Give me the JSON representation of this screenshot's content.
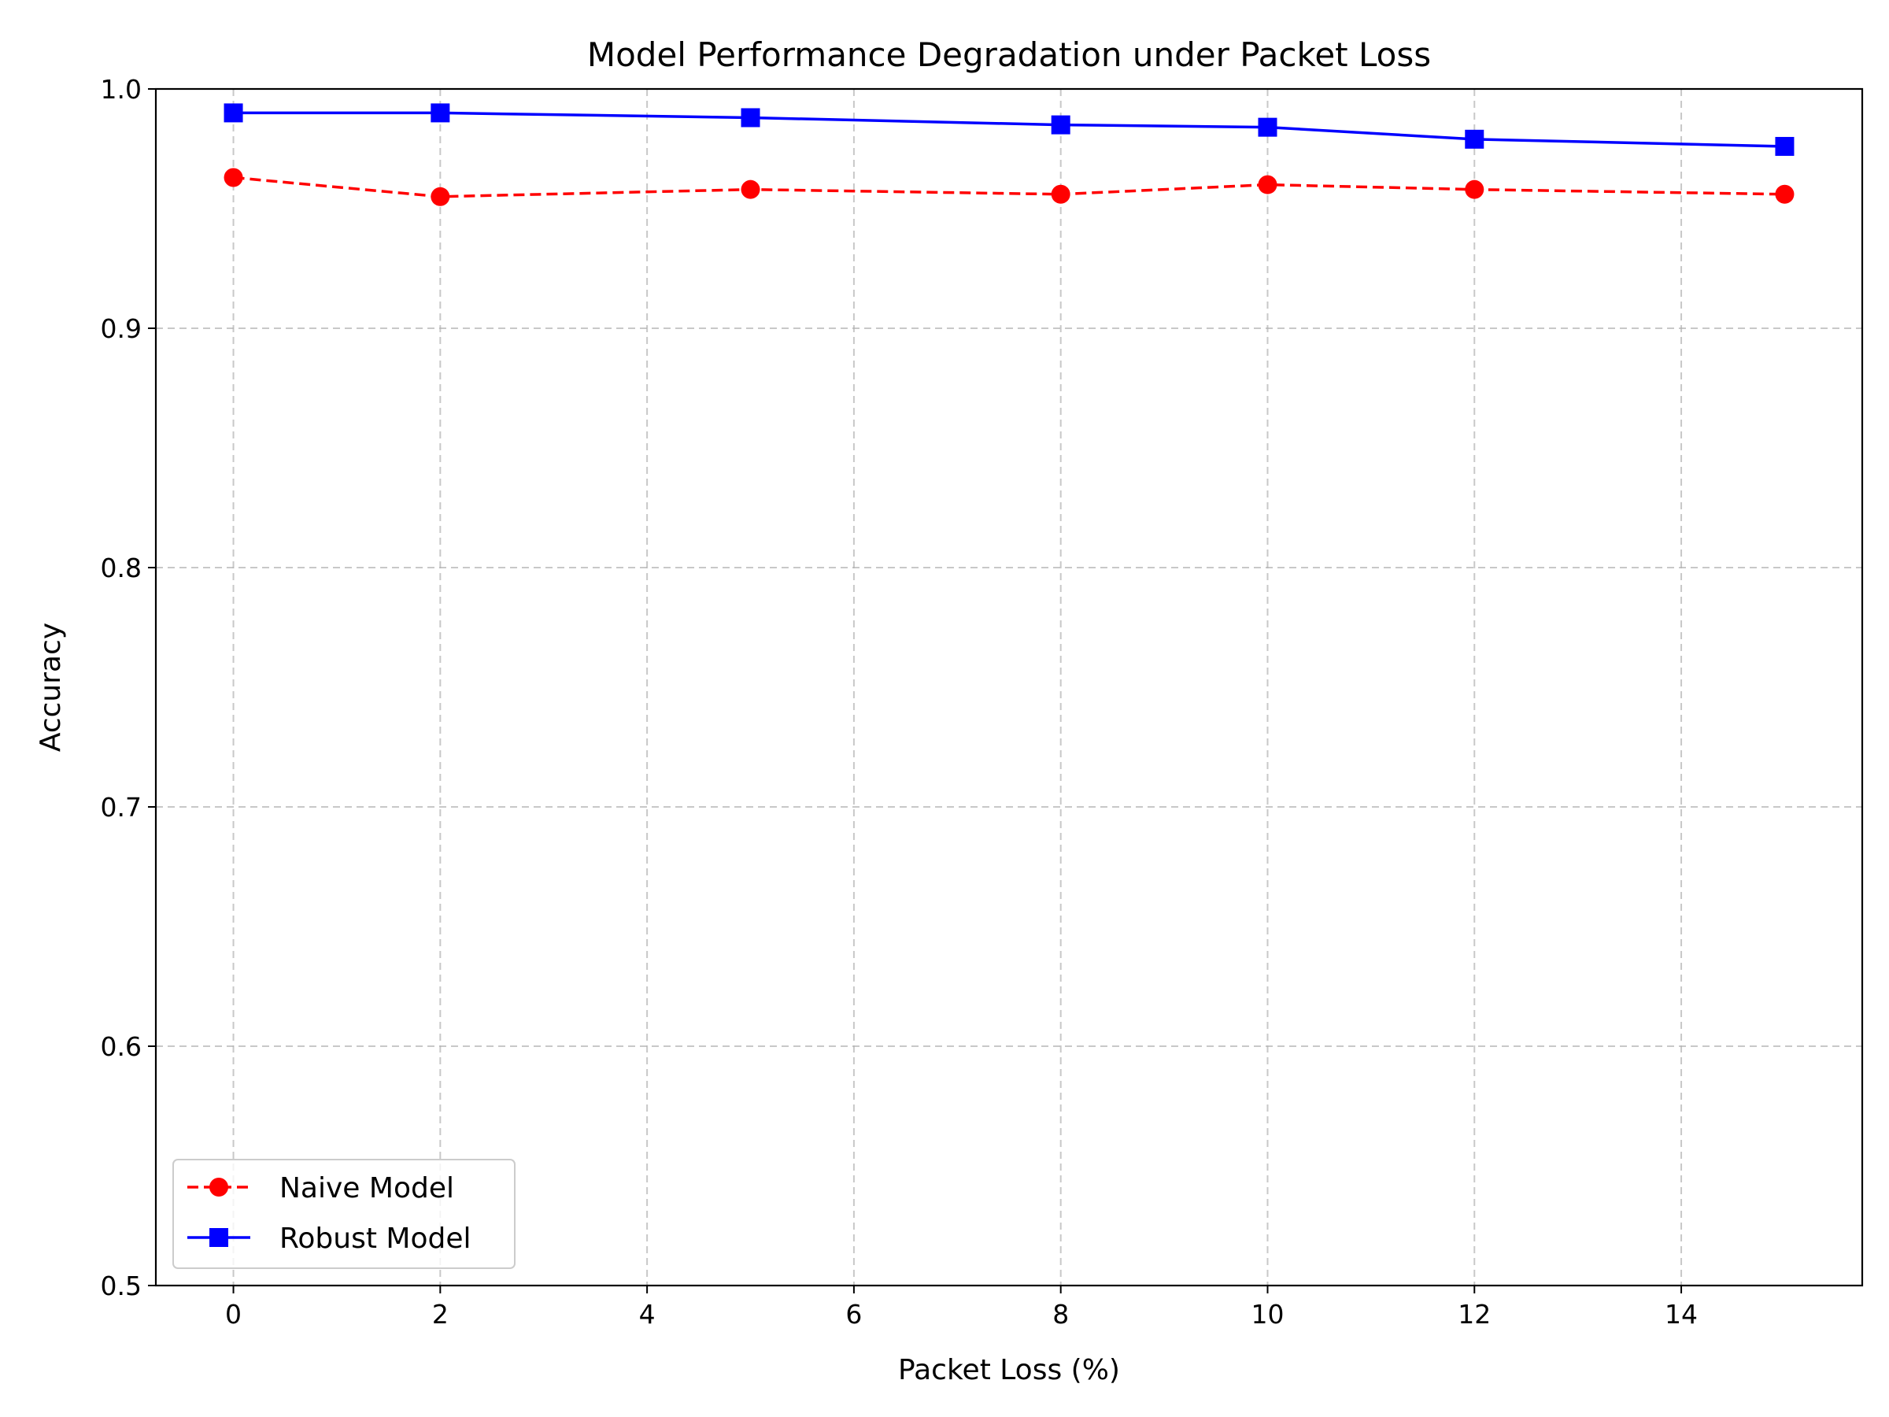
{
  "chart_data": {
    "type": "line",
    "title": "Model Performance Degradation under Packet Loss",
    "xlabel": "Packet Loss (%)",
    "ylabel": "Accuracy",
    "xlim": [
      -0.75,
      15.75
    ],
    "ylim": [
      0.5,
      1.0
    ],
    "x_ticks": [
      0,
      2,
      4,
      6,
      8,
      10,
      12,
      14
    ],
    "y_ticks": [
      0.5,
      0.6,
      0.7,
      0.8,
      0.9,
      1.0
    ],
    "x_tick_labels": [
      "0",
      "2",
      "4",
      "6",
      "8",
      "10",
      "12",
      "14"
    ],
    "y_tick_labels": [
      "0.5",
      "0.6",
      "0.7",
      "0.8",
      "0.9",
      "1.0"
    ],
    "grid": true,
    "legend_position": "lower-left",
    "x": [
      0,
      2,
      5,
      8,
      10,
      12,
      15
    ],
    "series": [
      {
        "name": "Naive Model",
        "values": [
          0.963,
          0.955,
          0.958,
          0.956,
          0.96,
          0.958,
          0.956
        ],
        "color": "#ff0000",
        "line_style": "dashed",
        "marker": "circle"
      },
      {
        "name": "Robust Model",
        "values": [
          0.99,
          0.99,
          0.988,
          0.985,
          0.984,
          0.979,
          0.976
        ],
        "color": "#0000ff",
        "line_style": "solid",
        "marker": "square"
      }
    ]
  }
}
